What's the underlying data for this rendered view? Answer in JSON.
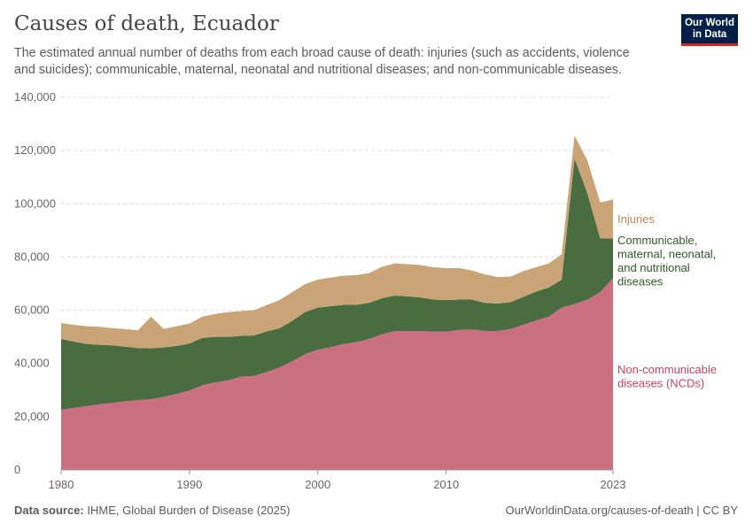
{
  "title": "Causes of death, Ecuador",
  "subtitle": "The estimated annual number of deaths from each broad cause of death: injuries (such as accidents, violence and suicides); communicable, maternal, neonatal and nutritional diseases; and non-communicable diseases.",
  "logo": {
    "line1": "Our World",
    "line2": "in Data"
  },
  "footer": {
    "source_label": "Data source:",
    "source": "IHME, Global Burden of Disease (2025)",
    "url": "OurWorldinData.org/causes-of-death | CC BY"
  },
  "chart_data": {
    "type": "area",
    "stacked": true,
    "x": [
      1980,
      1981,
      1982,
      1983,
      1984,
      1985,
      1986,
      1987,
      1988,
      1989,
      1990,
      1991,
      1992,
      1993,
      1994,
      1995,
      1996,
      1997,
      1998,
      1999,
      2000,
      2001,
      2002,
      2003,
      2004,
      2005,
      2006,
      2007,
      2008,
      2009,
      2010,
      2011,
      2012,
      2013,
      2014,
      2015,
      2016,
      2017,
      2018,
      2019,
      2020,
      2021,
      2022,
      2023
    ],
    "xticks": [
      "1980",
      "1990",
      "2000",
      "2010",
      "2023"
    ],
    "yticks": [
      "0",
      "20,000",
      "40,000",
      "60,000",
      "80,000",
      "100,000",
      "120,000",
      "140,000"
    ],
    "ylim": [
      0,
      140000
    ],
    "grid": true,
    "legend": "right-labels",
    "series": [
      {
        "name": "Non-communicable diseases (NCDs)",
        "color": "#ca7080",
        "values": [
          22600,
          23300,
          24000,
          24700,
          25200,
          25800,
          26200,
          26600,
          27400,
          28600,
          29800,
          31800,
          32900,
          33600,
          35100,
          35300,
          36800,
          38500,
          40800,
          43500,
          45200,
          46200,
          47300,
          48000,
          49200,
          51000,
          52200,
          52200,
          52200,
          52000,
          52000,
          52600,
          52800,
          52200,
          52200,
          52900,
          54500,
          56100,
          57600,
          61000,
          62300,
          64000,
          66800,
          72000
        ]
      },
      {
        "name": "Communicable, maternal, neonatal, and nutritional diseases",
        "color": "#496d41",
        "values": [
          26600,
          24900,
          23300,
          22300,
          21600,
          20500,
          19600,
          19100,
          18600,
          18000,
          17700,
          17800,
          17100,
          16400,
          15300,
          15200,
          15200,
          14700,
          15200,
          15800,
          15800,
          15300,
          14700,
          14000,
          13600,
          13500,
          13300,
          13000,
          12600,
          12000,
          11800,
          11400,
          11200,
          10600,
          10300,
          10100,
          10500,
          10900,
          11000,
          10500,
          54700,
          40000,
          20200,
          15000
        ]
      },
      {
        "name": "Injuries",
        "color": "#c8a477",
        "values": [
          6000,
          6300,
          6700,
          6800,
          6500,
          6600,
          6700,
          11900,
          7000,
          7400,
          7500,
          8000,
          8600,
          9300,
          9300,
          9500,
          9900,
          10600,
          10800,
          10500,
          10500,
          10800,
          11000,
          11200,
          11200,
          11800,
          12100,
          12100,
          12200,
          12200,
          12000,
          11800,
          11000,
          10700,
          10000,
          9600,
          9700,
          9200,
          9000,
          9500,
          8600,
          12300,
          13500,
          14600
        ]
      }
    ]
  }
}
